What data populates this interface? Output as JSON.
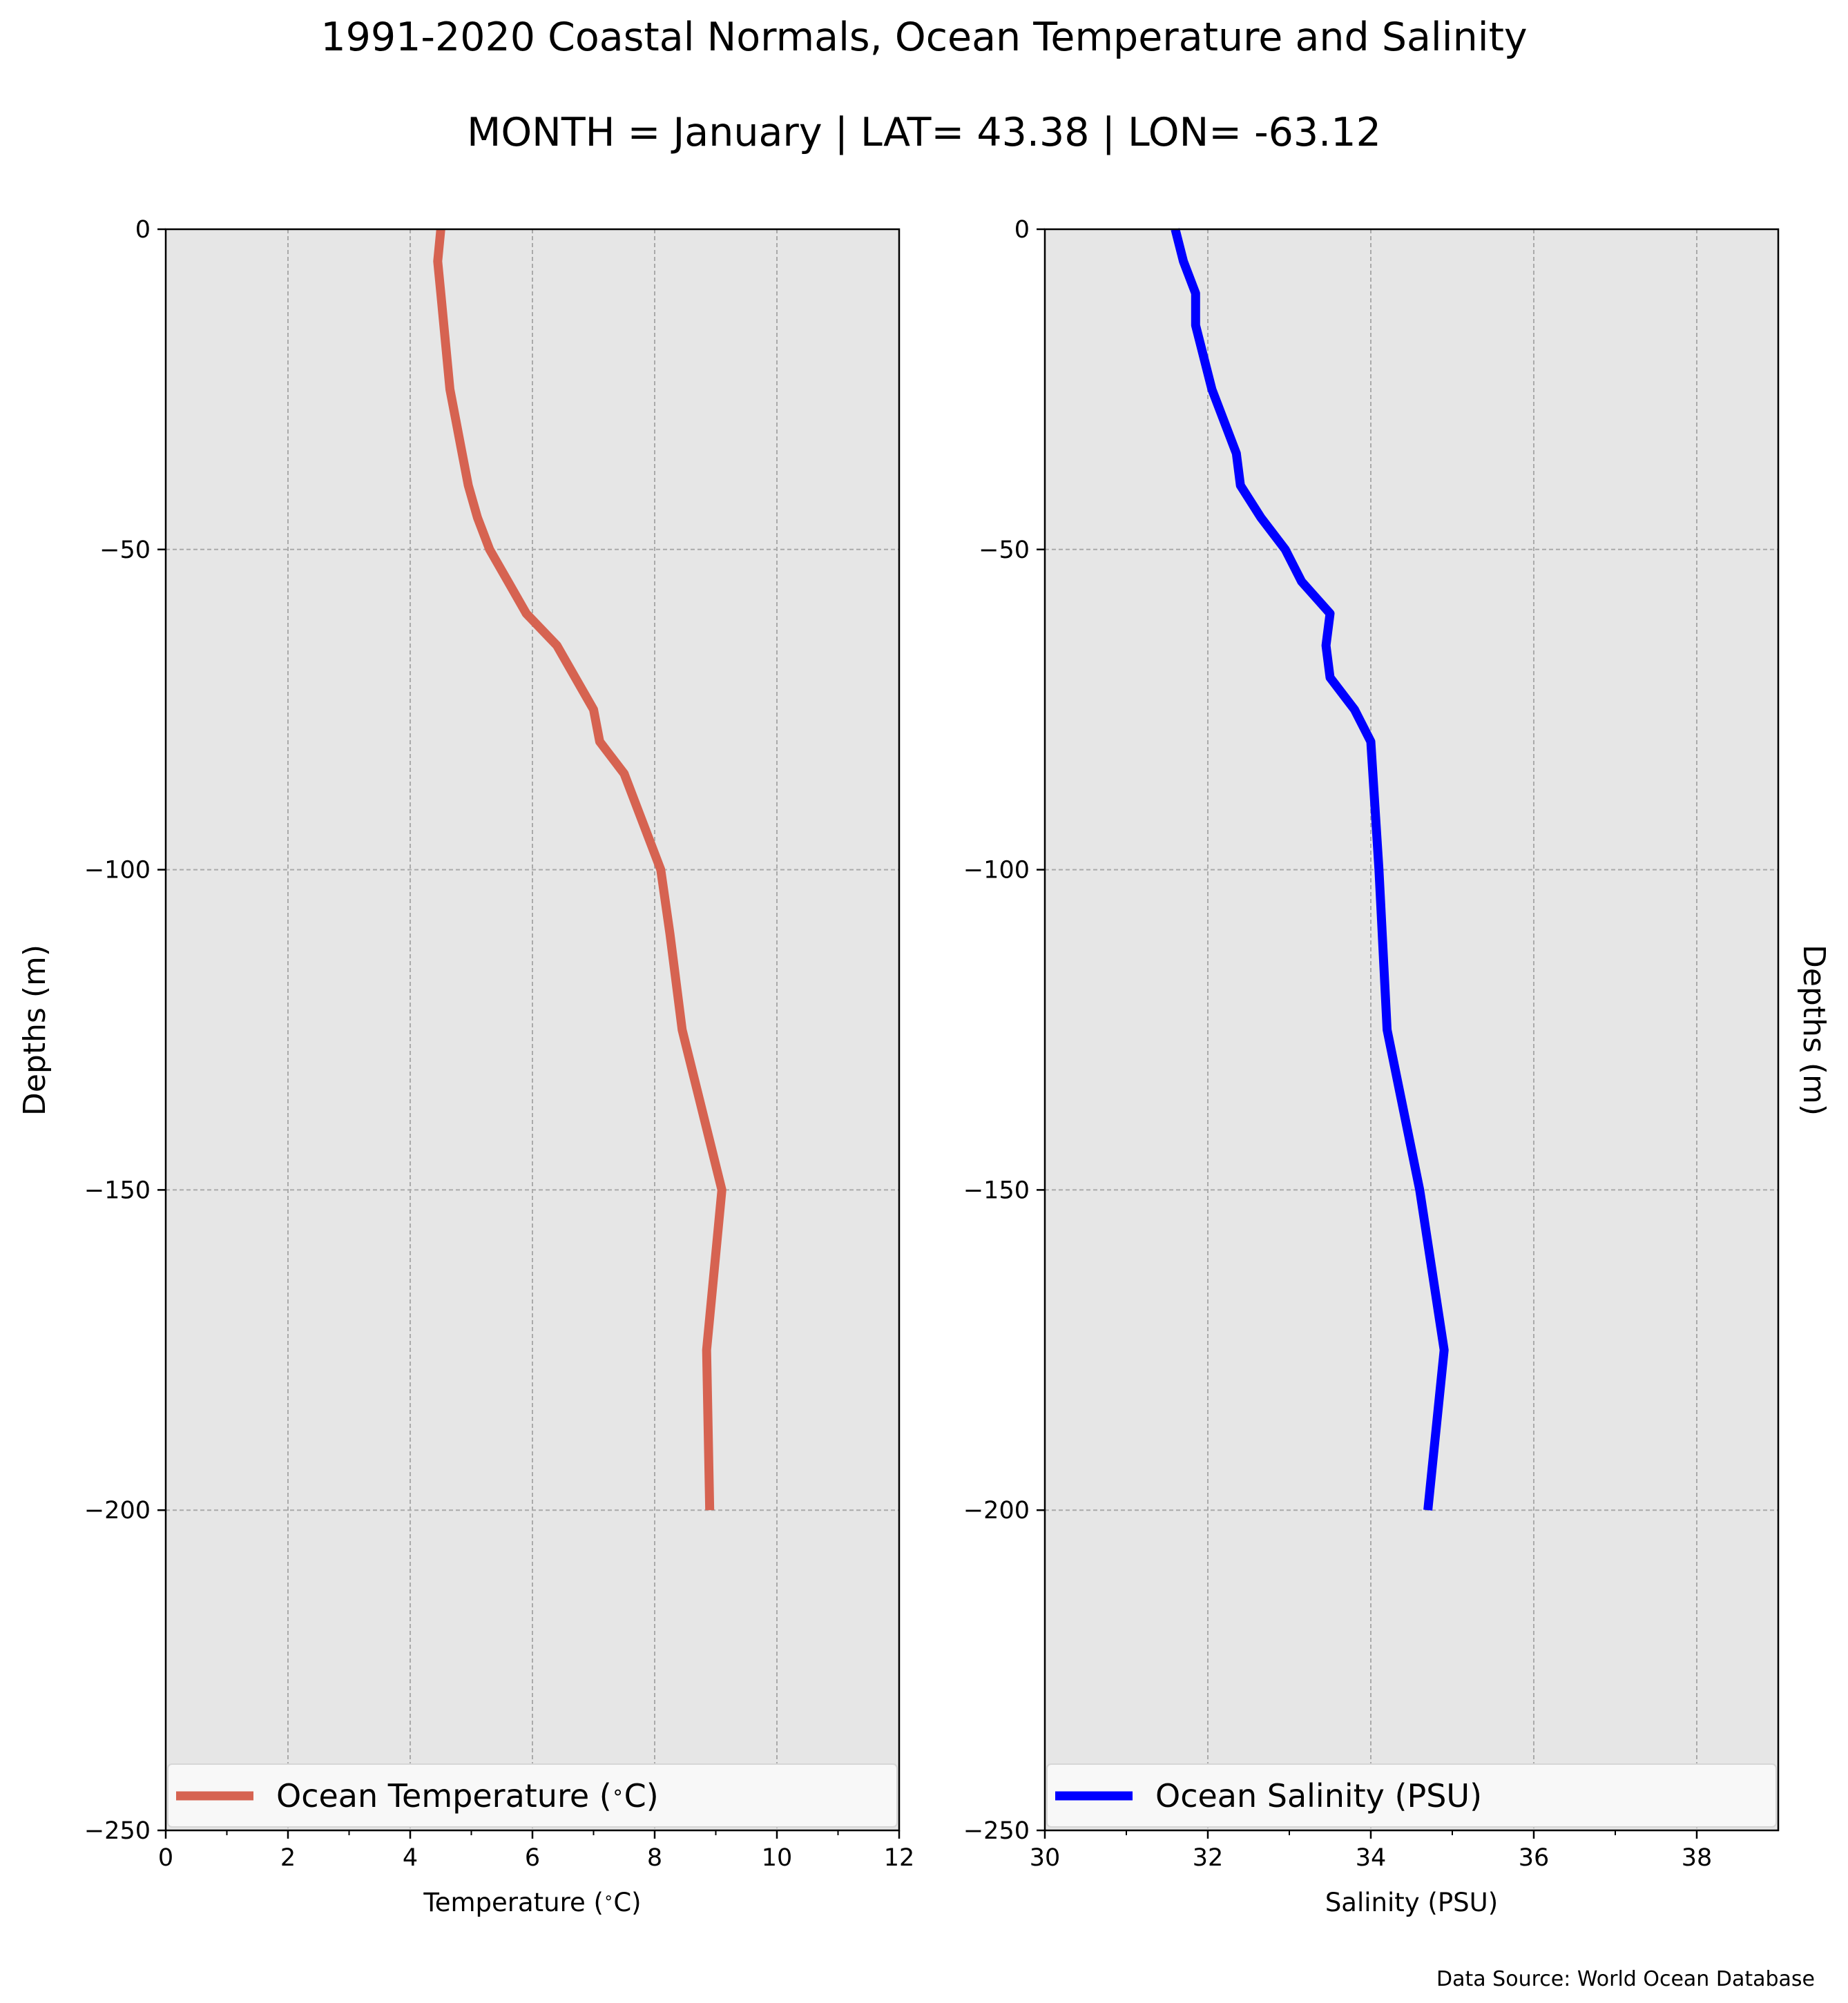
{
  "title": "1991-2020 Coastal Normals, Ocean Temperature and Salinity",
  "subtitle": "MONTH = January | LAT= 43.38 | LON= -63.12",
  "source": "Data Source: World Ocean Database",
  "colors": {
    "background": "#e6e6e6",
    "temperature": "#d66351",
    "salinity": "#0000ff",
    "grid": "#aaaaaa"
  },
  "chart_data": [
    {
      "type": "line",
      "xlabel": "Temperature ($^\\circ$C)",
      "ylabel": "Depths (m)",
      "xlim": [
        0,
        12
      ],
      "ylim": [
        -250,
        0
      ],
      "xticks": [
        "0",
        "2",
        "4",
        "6",
        "8",
        "10",
        "12"
      ],
      "yticks": [
        "0",
        "−50",
        "−100",
        "−150",
        "−200",
        "−250"
      ],
      "grid": true,
      "legend_position": "lower center",
      "series": [
        {
          "name": "Ocean Temperature ($^\\circ$C)",
          "color": "#d66351",
          "x": [
            4.5,
            4.45,
            4.5,
            4.55,
            4.6,
            4.65,
            4.75,
            4.85,
            4.95,
            5.1,
            5.3,
            5.6,
            5.9,
            6.4,
            7.0,
            7.1,
            7.5,
            8.1,
            8.25,
            8.45,
            9.1,
            8.85,
            8.9
          ],
          "y": [
            0,
            -5,
            -10,
            -15,
            -20,
            -25,
            -30,
            -35,
            -40,
            -45,
            -50,
            -55,
            -60,
            -65,
            -75,
            -80,
            -85,
            -100,
            -110,
            -125,
            -150,
            -175,
            -200
          ]
        }
      ]
    },
    {
      "type": "line",
      "xlabel": "Salinity (PSU)",
      "ylabel": "Depths (m)",
      "xlim": [
        30,
        39
      ],
      "ylim": [
        -250,
        0
      ],
      "xticks": [
        "30",
        "32",
        "34",
        "36",
        "38"
      ],
      "yticks": [
        "0",
        "−50",
        "−100",
        "−150",
        "−200",
        "−250"
      ],
      "grid": true,
      "legend_position": "lower center",
      "series": [
        {
          "name": "Ocean Salinity (PSU)",
          "color": "#0000ff",
          "x": [
            31.6,
            31.7,
            31.85,
            31.85,
            31.95,
            32.05,
            32.2,
            32.35,
            32.4,
            32.65,
            32.95,
            33.15,
            33.5,
            33.45,
            33.5,
            33.8,
            34.0,
            34.1,
            34.2,
            34.6,
            34.9,
            34.7
          ],
          "y": [
            0,
            -5,
            -10,
            -15,
            -20,
            -25,
            -30,
            -35,
            -40,
            -45,
            -50,
            -55,
            -60,
            -65,
            -70,
            -75,
            -80,
            -100,
            -125,
            -150,
            -175,
            -200
          ]
        }
      ]
    }
  ]
}
